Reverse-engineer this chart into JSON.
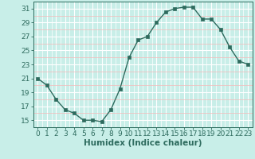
{
  "x": [
    0,
    1,
    2,
    3,
    4,
    5,
    6,
    7,
    8,
    9,
    10,
    11,
    12,
    13,
    14,
    15,
    16,
    17,
    18,
    19,
    20,
    21,
    22,
    23
  ],
  "y": [
    21,
    20,
    18,
    16.5,
    16,
    15,
    15,
    14.8,
    16.5,
    19.5,
    24,
    26.5,
    27,
    29,
    30.5,
    31,
    31.2,
    31.2,
    29.5,
    29.5,
    28,
    25.5,
    23.5,
    23
  ],
  "line_color": "#2e6b5e",
  "marker_color": "#2e6b5e",
  "bg_color": "#c8eee8",
  "grid_color": "#ffffff",
  "grid_minor_color": "#f5b8b8",
  "xlabel": "Humidex (Indice chaleur)",
  "ylim": [
    14,
    32
  ],
  "xlim": [
    -0.5,
    23.5
  ],
  "yticks": [
    15,
    17,
    19,
    21,
    23,
    25,
    27,
    29,
    31
  ],
  "xticks": [
    0,
    1,
    2,
    3,
    4,
    5,
    6,
    7,
    8,
    9,
    10,
    11,
    12,
    13,
    14,
    15,
    16,
    17,
    18,
    19,
    20,
    21,
    22,
    23
  ],
  "xlabel_fontsize": 7.5,
  "tick_fontsize": 6.5,
  "line_width": 1.0,
  "marker_size": 2.5
}
